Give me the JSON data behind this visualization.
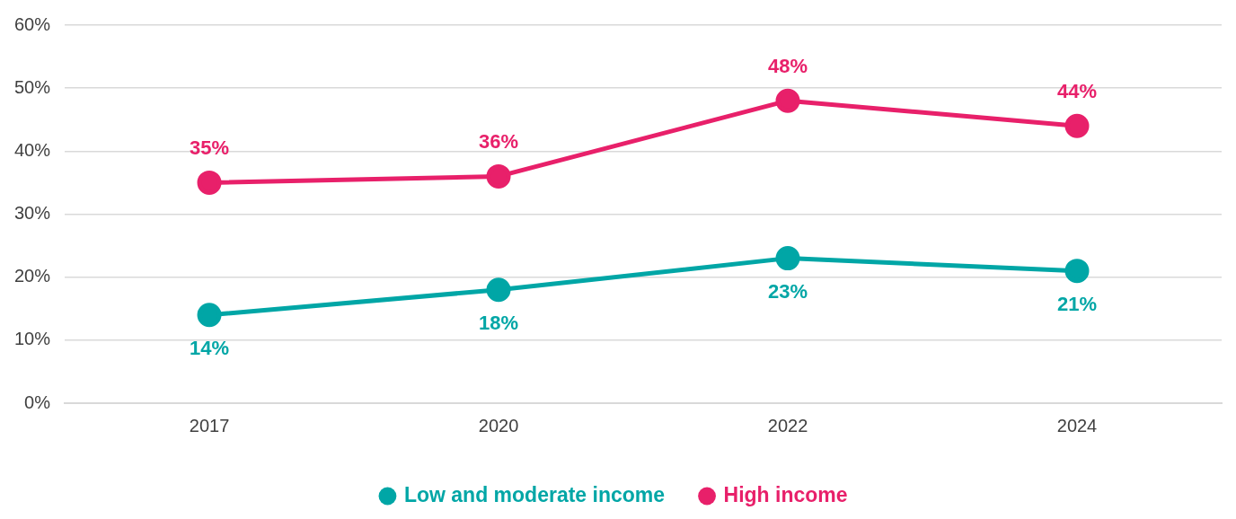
{
  "chart_data": {
    "type": "line",
    "categories": [
      "2017",
      "2020",
      "2022",
      "2024"
    ],
    "series": [
      {
        "name": "Low and moderate income",
        "color": "#00a6a6",
        "values": [
          14,
          18,
          23,
          21
        ],
        "value_labels": [
          "14%",
          "18%",
          "23%",
          "21%"
        ]
      },
      {
        "name": "High income",
        "color": "#e8206a",
        "values": [
          35,
          36,
          48,
          44
        ],
        "value_labels": [
          "35%",
          "36%",
          "48%",
          "44%"
        ]
      }
    ],
    "ylim": [
      0,
      60
    ],
    "yticks": [
      {
        "value": 0,
        "label": "0%"
      },
      {
        "value": 10,
        "label": "10%"
      },
      {
        "value": 20,
        "label": "20%"
      },
      {
        "value": 30,
        "label": "30%"
      },
      {
        "value": 40,
        "label": "40%"
      },
      {
        "value": 50,
        "label": "50%"
      },
      {
        "value": 60,
        "label": "60%"
      }
    ],
    "grid": "y",
    "legend": "bottom",
    "marker": "circle",
    "line_style": "solid"
  }
}
